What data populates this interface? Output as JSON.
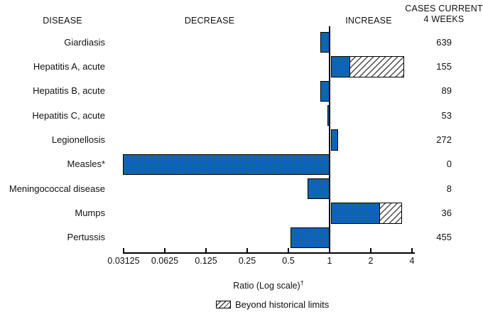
{
  "header": {
    "disease": "DISEASE",
    "decrease": "DECREASE",
    "increase": "INCREASE",
    "cases_line1": "CASES CURRENT",
    "cases_line2": "4 WEEKS"
  },
  "axis": {
    "label": "Ratio (Log scale)",
    "label_superscript": "†",
    "tick_labels": [
      "0.03125",
      "0.0625",
      "0.125",
      "0.25",
      "0.5",
      "1",
      "2",
      "4"
    ],
    "tick_values": [
      0.03125,
      0.0625,
      0.125,
      0.25,
      0.5,
      1,
      2,
      4
    ]
  },
  "legend": {
    "beyond_label": "Beyond historical limits"
  },
  "colors": {
    "bar_fill": "#0b63c5",
    "outline": "#000000",
    "hatch_line": "#4a4a4a"
  },
  "chart_data": {
    "type": "bar",
    "orientation": "horizontal",
    "scale": "log2",
    "title": "Selected notifiable disease reports, comparison of provisional 4-week totals with historical data",
    "xlabel": "Ratio (Log scale)",
    "xlim": [
      0.03125,
      4
    ],
    "baseline_ratio": 1,
    "rows": [
      {
        "disease": "Giardiasis",
        "ratio": 0.87,
        "beyond_to": null,
        "cases": "639"
      },
      {
        "disease": "Hepatitis A, acute",
        "ratio": 1.4,
        "beyond_to": 3.5,
        "cases": "155"
      },
      {
        "disease": "Hepatitis B, acute",
        "ratio": 0.87,
        "beyond_to": null,
        "cases": "89"
      },
      {
        "disease": "Hepatitis C, acute",
        "ratio": 0.98,
        "beyond_to": null,
        "cases": "53"
      },
      {
        "disease": "Legionellosis",
        "ratio": 1.13,
        "beyond_to": null,
        "cases": "272"
      },
      {
        "disease": "Measles*",
        "ratio": 0.03125,
        "beyond_to": null,
        "cases": "0"
      },
      {
        "disease": "Meningococcal disease",
        "ratio": 0.7,
        "beyond_to": null,
        "cases": "8"
      },
      {
        "disease": "Mumps",
        "ratio": 2.3,
        "beyond_to": 3.4,
        "cases": "36"
      },
      {
        "disease": "Pertussis",
        "ratio": 0.53,
        "beyond_to": null,
        "cases": "455"
      }
    ]
  }
}
